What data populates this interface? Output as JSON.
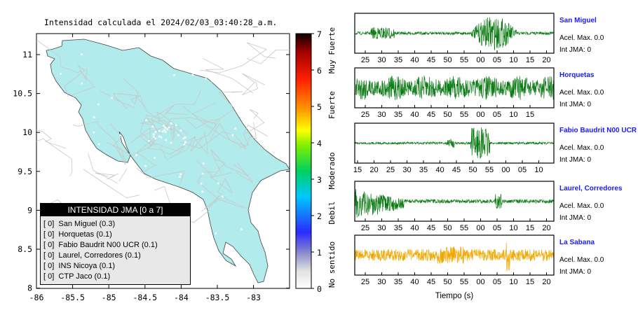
{
  "map": {
    "title": "Intensidad calculada el 2024/02/03_03:40:28_a.m.",
    "xticks": [
      "-86",
      "-85.5",
      "-85",
      "-84.5",
      "-84",
      "-83.5",
      "-83"
    ],
    "yticks": [
      "11",
      "10.5",
      "10",
      "9.5",
      "9",
      "8.5",
      "8"
    ],
    "land_color": "#b2ebec",
    "road_color": "#c8c8c8"
  },
  "colorbar": {
    "ticks": [
      "7",
      "6",
      "5",
      "4",
      "3",
      "2",
      "1",
      "0"
    ],
    "labels": [
      "Muy Fuerte",
      "Fuerte",
      "Moderado",
      "Debil",
      "No sentido"
    ]
  },
  "legend": {
    "header": "INTENSIDAD JMA [0 a 7]",
    "items": [
      {
        "jma": "[ 0]",
        "text": "San Miguel (0.3)"
      },
      {
        "jma": "[ 0]",
        "text": "Horquetas (0.1)"
      },
      {
        "jma": "[ 0]",
        "text": "Fabio Baudrit N00 UCR (0.1)"
      },
      {
        "jma": "[ 0]",
        "text": "Laurel, Corredores (0.1)"
      },
      {
        "jma": "[ 0]",
        "text": "INS Nicoya (0.1)"
      },
      {
        "jma": "[ 0]",
        "text": "CTP Jaco (0.1)"
      }
    ]
  },
  "waveforms": {
    "xlabel": "Tiempo (s)",
    "panels": [
      {
        "name": "San Miguel",
        "acel": "Acel. Max. 0.0",
        "jma": "Int JMA: 0",
        "color": "#0a7a12",
        "ticks": [
          "25",
          "30",
          "35",
          "40",
          "45",
          "50",
          "55",
          "00",
          "05",
          "10",
          "15",
          "20"
        ]
      },
      {
        "name": "Horquetas",
        "acel": "Acel. Max. 0.0",
        "jma": "Int JMA: 0",
        "color": "#0a7a12",
        "ticks": [
          "25",
          "30",
          "35",
          "40",
          "45",
          "50",
          "55",
          "00",
          "05",
          "10",
          "15"
        ]
      },
      {
        "name": "Fabio Baudrit N00 UCR",
        "acel": "Acel. Max. 0.0",
        "jma": "Int JMA: 0",
        "color": "#0a7a12",
        "ticks": [
          "15",
          "20",
          "25",
          "30",
          "35",
          "40",
          "45",
          "50",
          "55",
          "00",
          "05",
          "10"
        ]
      },
      {
        "name": "Laurel, Corredores",
        "acel": "Acel. Max. 0.0",
        "jma": "Int JMA: 0",
        "color": "#0a7a12",
        "ticks": [
          "25",
          "30",
          "35",
          "40",
          "45",
          "50",
          "55",
          "00",
          "05",
          "10",
          "15",
          "20"
        ]
      },
      {
        "name": "La Sabana",
        "acel": "Acel. Max. 0.0",
        "jma": "Int JMA: 0",
        "color": "#f0a800",
        "ticks": [
          "25",
          "30",
          "35",
          "40",
          "45",
          "50",
          "55",
          "00",
          "05",
          "10",
          "15",
          "20"
        ]
      }
    ]
  }
}
